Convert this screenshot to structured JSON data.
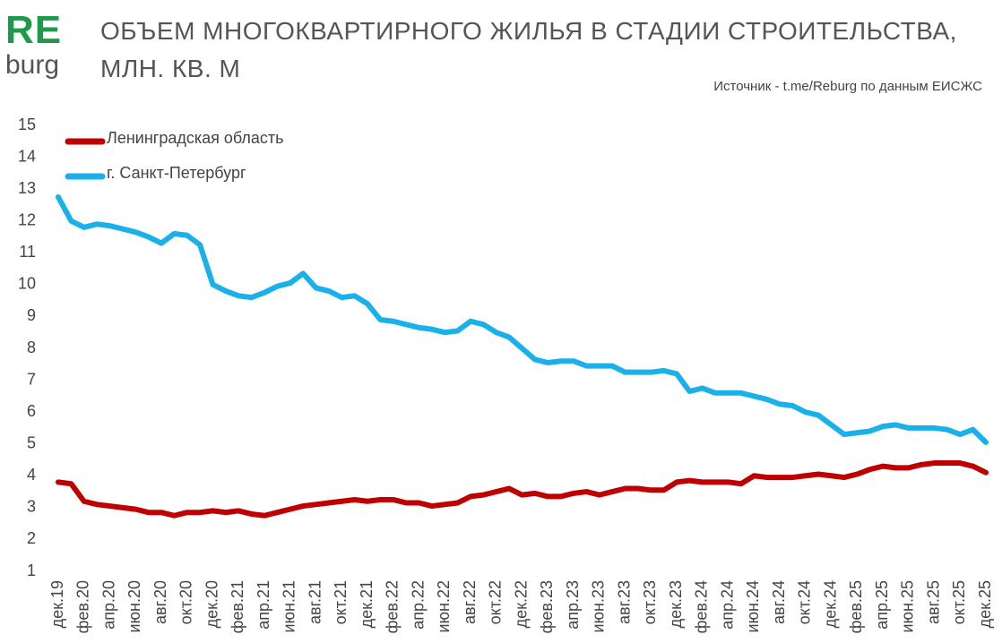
{
  "logo": {
    "main": "RE",
    "sub": "burg"
  },
  "chart_data": {
    "type": "line",
    "title": "ОБЪЕМ МНОГОКВАРТИРНОГО ЖИЛЬЯ В СТАДИИ СТРОИТЕЛЬСТВА, МЛН. КВ. М",
    "source": "Источник - t.me/Reburg по данным ЕИСЖС",
    "categories": [
      "дек.19",
      null,
      "фев.20",
      null,
      "апр.20",
      null,
      "июн.20",
      null,
      "авг.20",
      null,
      "окт.20",
      null,
      "дек.20",
      null,
      "фев.21",
      null,
      "апр.21",
      null,
      "июн.21",
      null,
      "авг.21",
      null,
      "окт.21",
      null,
      "дек.21",
      null,
      "фев.22",
      null,
      "апр.22",
      null,
      "июн.22",
      null,
      "авг.22",
      null,
      "окт.22",
      null,
      "дек.22",
      null,
      "фев.23",
      null,
      "апр.23",
      null,
      "июн.23",
      null,
      "авг.23",
      null,
      "окт.23",
      null,
      "дек.23",
      null,
      "фев.24",
      null,
      "апр.24",
      null,
      "июн.24",
      null,
      "авг.24",
      null,
      "окт.24",
      null,
      "дек.24",
      null,
      "фев.25",
      null,
      "апр.25",
      null,
      "июн.25",
      null,
      "авг.25",
      null,
      "окт.25",
      null,
      "дек.25"
    ],
    "series": [
      {
        "name": "Ленинградская область",
        "color": "#c00000",
        "values": [
          3.8,
          3.75,
          3.2,
          3.1,
          3.05,
          3.0,
          2.95,
          2.85,
          2.85,
          2.75,
          2.85,
          2.85,
          2.9,
          2.85,
          2.9,
          2.8,
          2.75,
          2.85,
          2.95,
          3.05,
          3.1,
          3.15,
          3.2,
          3.25,
          3.2,
          3.25,
          3.25,
          3.15,
          3.15,
          3.05,
          3.1,
          3.15,
          3.35,
          3.4,
          3.5,
          3.6,
          3.4,
          3.45,
          3.35,
          3.35,
          3.45,
          3.5,
          3.4,
          3.5,
          3.6,
          3.6,
          3.55,
          3.55,
          3.8,
          3.85,
          3.8,
          3.8,
          3.8,
          3.75,
          4.0,
          3.95,
          3.95,
          3.95,
          4.0,
          4.05,
          4.0,
          3.95,
          4.05,
          4.2,
          4.3,
          4.25,
          4.25,
          4.35,
          4.4,
          4.4,
          4.4,
          4.3,
          4.1
        ]
      },
      {
        "name": "г. Санкт-Петербург",
        "color": "#1ab0ea",
        "values": [
          12.75,
          12.0,
          11.8,
          11.9,
          11.85,
          11.75,
          11.65,
          11.5,
          11.3,
          11.6,
          11.55,
          11.25,
          10.0,
          9.8,
          9.65,
          9.6,
          9.75,
          9.95,
          10.05,
          10.35,
          9.9,
          9.8,
          9.6,
          9.65,
          9.4,
          8.9,
          8.85,
          8.75,
          8.65,
          8.6,
          8.5,
          8.55,
          8.85,
          8.75,
          8.5,
          8.35,
          8.0,
          7.65,
          7.55,
          7.6,
          7.6,
          7.45,
          7.45,
          7.45,
          7.25,
          7.25,
          7.25,
          7.3,
          7.2,
          6.65,
          6.75,
          6.6,
          6.6,
          6.6,
          6.5,
          6.4,
          6.25,
          6.2,
          6.0,
          5.9,
          5.6,
          5.3,
          5.35,
          5.4,
          5.55,
          5.6,
          5.5,
          5.5,
          5.5,
          5.45,
          5.3,
          5.45,
          5.05
        ]
      }
    ],
    "ylim": [
      1,
      15
    ],
    "yticks": [
      1,
      2,
      3,
      4,
      5,
      6,
      7,
      8,
      9,
      10,
      11,
      12,
      13,
      14,
      15
    ],
    "grid": false
  }
}
